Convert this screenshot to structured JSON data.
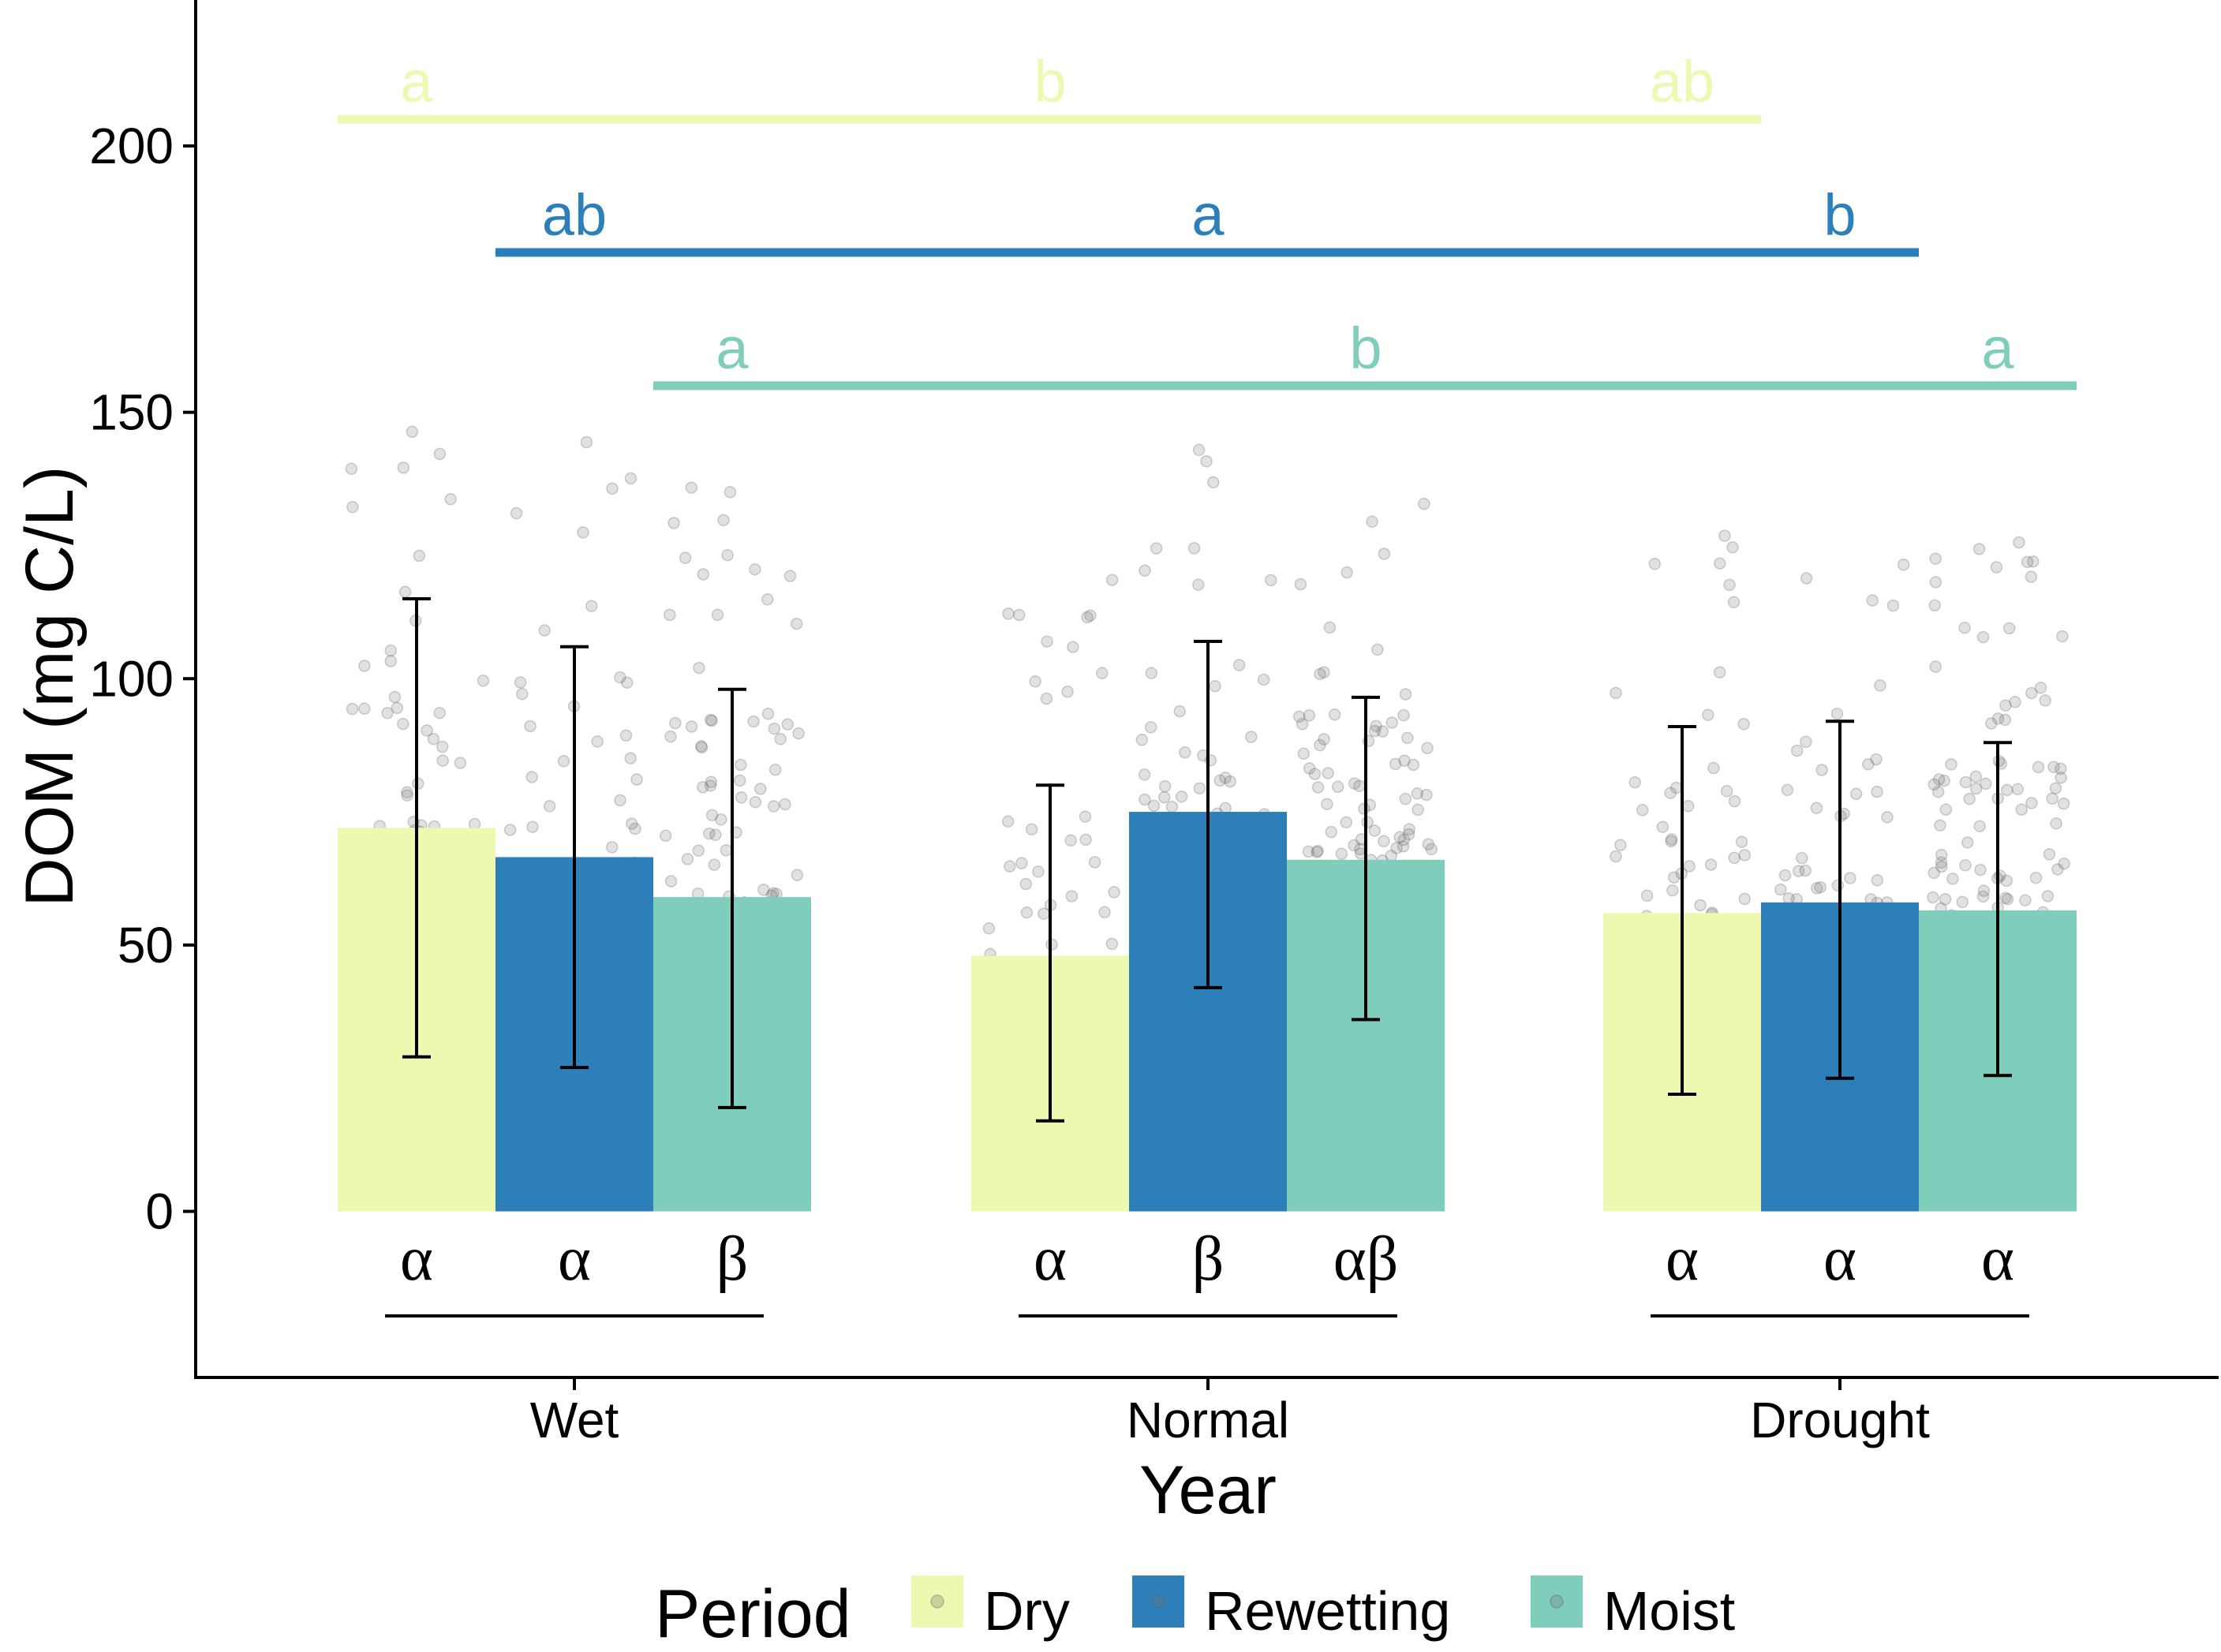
{
  "chart_data": {
    "type": "bar",
    "xlabel": "Year",
    "ylabel": "DOM (mg C/L)",
    "ylim": [
      -31,
      228
    ],
    "yticks": [
      0,
      50,
      100,
      150,
      200
    ],
    "categories": [
      "Wet",
      "Normal",
      "Drought"
    ],
    "grid": false,
    "legend": {
      "title": "Period",
      "placement": "bottom",
      "entries": [
        "Dry",
        "Rewetting",
        "Moist"
      ]
    },
    "series": [
      {
        "name": "Dry",
        "color": "#EDF8B1",
        "values": [
          72,
          48,
          56
        ],
        "error_low": [
          29,
          17,
          22
        ],
        "error_high": [
          115,
          80,
          91
        ]
      },
      {
        "name": "Rewetting",
        "color": "#2C7FB8",
        "values": [
          66.5,
          75,
          58
        ],
        "error_low": [
          27,
          42,
          25
        ],
        "error_high": [
          106,
          107,
          92
        ]
      },
      {
        "name": "Moist",
        "color": "#7FCDBB",
        "values": [
          59,
          66,
          56.5
        ],
        "error_low": [
          19.5,
          36,
          25.5
        ],
        "error_high": [
          98,
          96.5,
          88
        ]
      }
    ],
    "year_comparison_letters": [
      {
        "series": "Dry",
        "color": "#EDF8B1",
        "y": 205,
        "letters": [
          "a",
          "b",
          "ab"
        ]
      },
      {
        "series": "Rewetting",
        "color": "#2C7FB8",
        "y": 180,
        "letters": [
          "ab",
          "a",
          "b"
        ]
      },
      {
        "series": "Moist",
        "color": "#7FCDBB",
        "y": 155,
        "letters": [
          "a",
          "b",
          "a"
        ]
      }
    ],
    "period_comparison_letters": [
      [
        "α",
        "α",
        "β"
      ],
      [
        "α",
        "β",
        "αβ"
      ],
      [
        "α",
        "α",
        "α"
      ]
    ]
  }
}
